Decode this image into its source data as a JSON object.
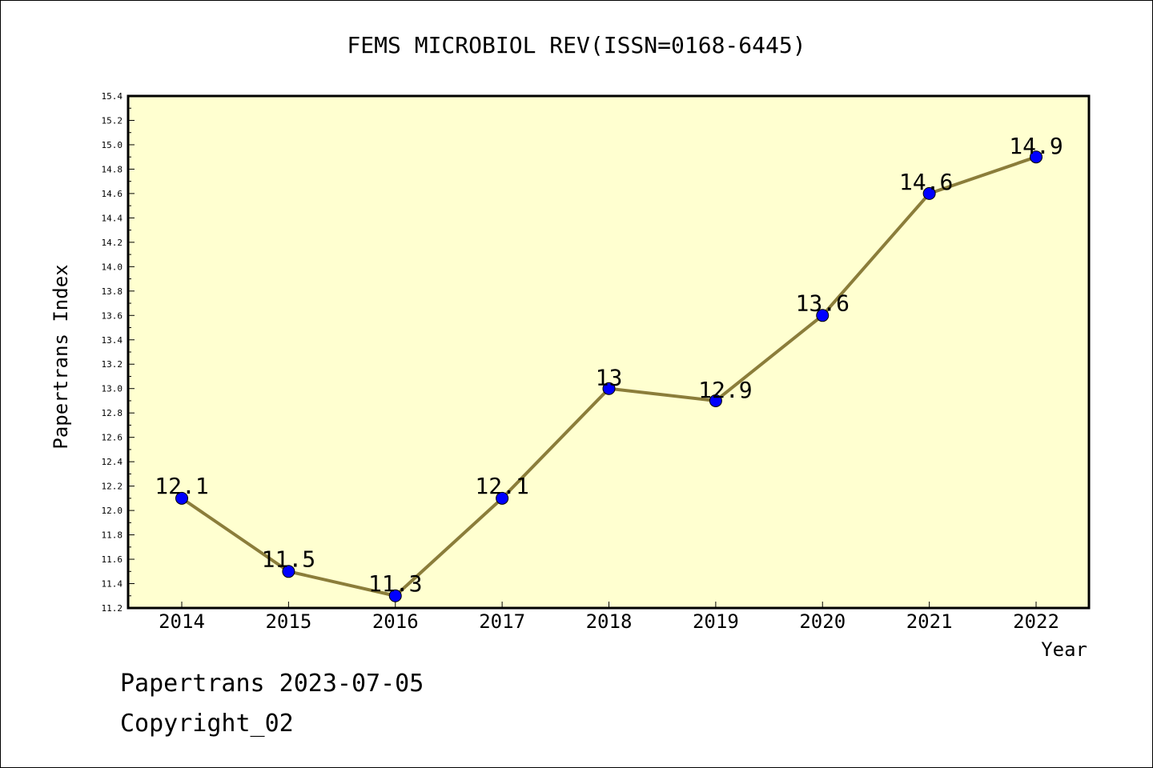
{
  "chart_data": {
    "type": "line",
    "title": "FEMS MICROBIOL REV(ISSN=0168-6445)",
    "xlabel": "Year",
    "ylabel": "Papertrans Index",
    "categories": [
      "2014",
      "2015",
      "2016",
      "2017",
      "2018",
      "2019",
      "2020",
      "2021",
      "2022"
    ],
    "series": [
      {
        "values": [
          12.1,
          11.5,
          11.3,
          12.1,
          13,
          12.9,
          13.6,
          14.6,
          14.9
        ],
        "labels": [
          "12.1",
          "11.5",
          "11.3",
          "12.1",
          "13",
          "12.9",
          "13.6",
          "14.6",
          "14.9"
        ]
      }
    ],
    "ylim": [
      11.2,
      15.4
    ],
    "yticks": [
      "11.2",
      "11.4",
      "11.6",
      "11.8",
      "12.0",
      "12.2",
      "12.4",
      "12.6",
      "12.8",
      "13.0",
      "13.2",
      "13.4",
      "13.6",
      "13.8",
      "14.0",
      "14.2",
      "14.4",
      "14.6",
      "14.8",
      "15.0",
      "15.2",
      "15.4"
    ],
    "grid": false,
    "plot_background": "#FFFFD0",
    "line_color": "#8B7D3A",
    "marker_color": "#0000FF"
  },
  "footer": {
    "line1": "Papertrans 2023-07-05",
    "line2": "Copyright_02"
  }
}
